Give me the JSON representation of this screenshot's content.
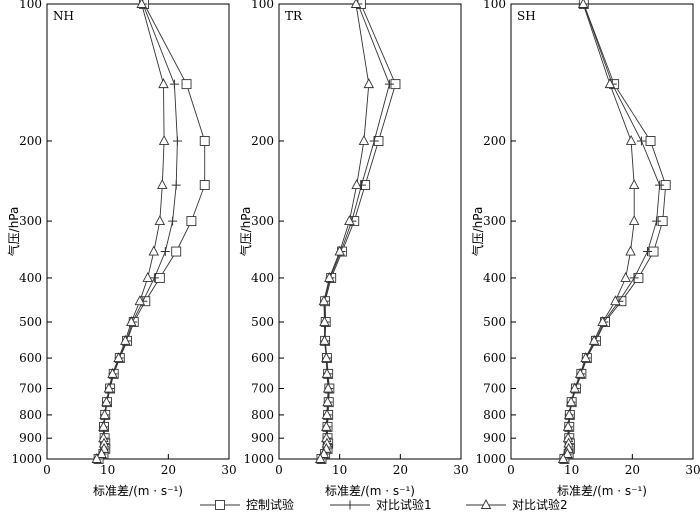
{
  "chart_data": [
    {
      "type": "line",
      "panel_label": "NH",
      "xlabel": "标准差/(m · s⁻¹)",
      "ylabel": "气压/hPa",
      "xlim": [
        0,
        30
      ],
      "ylim": [
        1000,
        100
      ],
      "yscale": "log",
      "xticks": [
        0,
        10,
        20,
        30
      ],
      "yticks": [
        100,
        200,
        300,
        400,
        500,
        600,
        700,
        800,
        900,
        1000
      ],
      "grid": false,
      "series": [
        {
          "name": "控制试验",
          "marker": "square",
          "x": [
            16.0,
            23.0,
            26.0,
            26.0,
            23.8,
            21.3,
            18.6,
            16.2,
            14.3,
            13.2,
            12.0,
            11.0,
            10.4,
            9.9,
            9.6,
            9.4,
            9.5,
            9.6,
            9.6,
            9.3,
            8.5
          ],
          "y": [
            100,
            150,
            200,
            250,
            300,
            350,
            400,
            450,
            500,
            550,
            600,
            650,
            700,
            750,
            800,
            850,
            900,
            925,
            950,
            975,
            1000
          ]
        },
        {
          "name": "对比试验1",
          "marker": "plus",
          "x": [
            15.8,
            21.0,
            21.5,
            21.3,
            20.7,
            19.5,
            17.7,
            15.8,
            14.1,
            13.1,
            11.9,
            10.9,
            10.3,
            9.8,
            9.5,
            9.4,
            9.4,
            9.5,
            9.5,
            9.1,
            8.3
          ],
          "y": [
            100,
            150,
            200,
            250,
            300,
            350,
            400,
            450,
            500,
            550,
            600,
            650,
            700,
            750,
            800,
            850,
            900,
            925,
            950,
            975,
            1000
          ]
        },
        {
          "name": "对比试验2",
          "marker": "triangle",
          "x": [
            15.6,
            19.2,
            19.3,
            19.0,
            18.6,
            17.6,
            16.6,
            15.3,
            13.9,
            12.9,
            11.8,
            10.8,
            10.2,
            9.8,
            9.5,
            9.3,
            9.3,
            9.4,
            9.4,
            9.0,
            8.2
          ],
          "y": [
            100,
            150,
            200,
            250,
            300,
            350,
            400,
            450,
            500,
            550,
            600,
            650,
            700,
            750,
            800,
            850,
            900,
            925,
            950,
            975,
            1000
          ]
        }
      ]
    },
    {
      "type": "line",
      "panel_label": "TR",
      "xlabel": "标准差/(m · s⁻¹)",
      "ylabel": "气压/hPa",
      "xlim": [
        0,
        30
      ],
      "ylim": [
        1000,
        100
      ],
      "yscale": "log",
      "xticks": [
        0,
        10,
        20,
        30
      ],
      "yticks": [
        100,
        200,
        300,
        400,
        500,
        600,
        700,
        800,
        900,
        1000
      ],
      "grid": false,
      "series": [
        {
          "name": "控制试验",
          "marker": "square",
          "x": [
            13.5,
            19.2,
            16.4,
            14.2,
            12.4,
            10.4,
            8.6,
            7.6,
            7.7,
            7.6,
            7.9,
            8.1,
            8.3,
            8.2,
            8.1,
            8.0,
            8.0,
            8.1,
            8.0,
            7.6,
            7.0
          ],
          "y": [
            100,
            150,
            200,
            250,
            300,
            350,
            400,
            450,
            500,
            550,
            600,
            650,
            700,
            750,
            800,
            850,
            900,
            925,
            950,
            975,
            1000
          ]
        },
        {
          "name": "对比试验1",
          "marker": "plus",
          "x": [
            13.0,
            18.2,
            15.7,
            13.6,
            12.0,
            10.2,
            8.4,
            7.5,
            7.6,
            7.6,
            7.9,
            8.0,
            8.2,
            8.1,
            8.0,
            7.9,
            7.9,
            8.0,
            7.9,
            7.5,
            6.9
          ],
          "y": [
            100,
            150,
            200,
            250,
            300,
            350,
            400,
            450,
            500,
            550,
            600,
            650,
            700,
            750,
            800,
            850,
            900,
            925,
            950,
            975,
            1000
          ]
        },
        {
          "name": "对比试验2",
          "marker": "triangle",
          "x": [
            12.7,
            14.8,
            14.0,
            12.8,
            11.6,
            10.0,
            8.3,
            7.4,
            7.5,
            7.5,
            7.8,
            7.9,
            8.1,
            8.0,
            7.9,
            7.8,
            7.8,
            7.9,
            7.8,
            7.4,
            6.8
          ],
          "y": [
            100,
            150,
            200,
            250,
            300,
            350,
            400,
            450,
            500,
            550,
            600,
            650,
            700,
            750,
            800,
            850,
            900,
            925,
            950,
            975,
            1000
          ]
        }
      ]
    },
    {
      "type": "line",
      "panel_label": "SH",
      "xlabel": "标准差/(m · s⁻¹)",
      "ylabel": "气压/hPa",
      "xlim": [
        0,
        30
      ],
      "ylim": [
        1000,
        100
      ],
      "yscale": "log",
      "xticks": [
        0,
        10,
        20,
        30
      ],
      "yticks": [
        100,
        200,
        300,
        400,
        500,
        600,
        700,
        800,
        900,
        1000
      ],
      "grid": false,
      "series": [
        {
          "name": "控制试验",
          "marker": "square",
          "x": [
            12.0,
            17.0,
            23.0,
            25.5,
            25.0,
            23.5,
            21.0,
            18.2,
            15.5,
            14.0,
            12.5,
            11.6,
            10.7,
            10.0,
            9.7,
            9.6,
            9.6,
            9.7,
            9.7,
            9.5,
            8.8
          ],
          "y": [
            100,
            150,
            200,
            250,
            300,
            350,
            400,
            450,
            500,
            550,
            600,
            650,
            700,
            750,
            800,
            850,
            900,
            925,
            950,
            975,
            1000
          ]
        },
        {
          "name": "对比试验1",
          "marker": "plus",
          "x": [
            12.0,
            16.7,
            21.5,
            24.5,
            24.0,
            22.5,
            20.3,
            17.8,
            15.3,
            13.9,
            12.4,
            11.5,
            10.6,
            9.9,
            9.6,
            9.5,
            9.5,
            9.6,
            9.6,
            9.4,
            8.7
          ],
          "y": [
            100,
            150,
            200,
            250,
            300,
            350,
            400,
            450,
            500,
            550,
            600,
            650,
            700,
            750,
            800,
            850,
            900,
            925,
            950,
            975,
            1000
          ]
        },
        {
          "name": "对比试验2",
          "marker": "triangle",
          "x": [
            11.9,
            16.3,
            19.8,
            20.3,
            20.3,
            19.7,
            18.9,
            17.2,
            15.1,
            13.7,
            12.3,
            11.4,
            10.5,
            9.9,
            9.6,
            9.4,
            9.4,
            9.5,
            9.5,
            9.3,
            8.6
          ],
          "y": [
            100,
            150,
            200,
            250,
            300,
            350,
            400,
            450,
            500,
            550,
            600,
            650,
            700,
            750,
            800,
            850,
            900,
            925,
            950,
            975,
            1000
          ]
        }
      ]
    }
  ],
  "legend": {
    "placement": "bottom",
    "items": [
      {
        "label": "控制试验",
        "marker": "square"
      },
      {
        "label": "对比试验1",
        "marker": "plus"
      },
      {
        "label": "对比试验2",
        "marker": "triangle"
      }
    ]
  },
  "colors": {
    "line": "#333333",
    "axis": "#000000",
    "background": "#ffffff"
  }
}
